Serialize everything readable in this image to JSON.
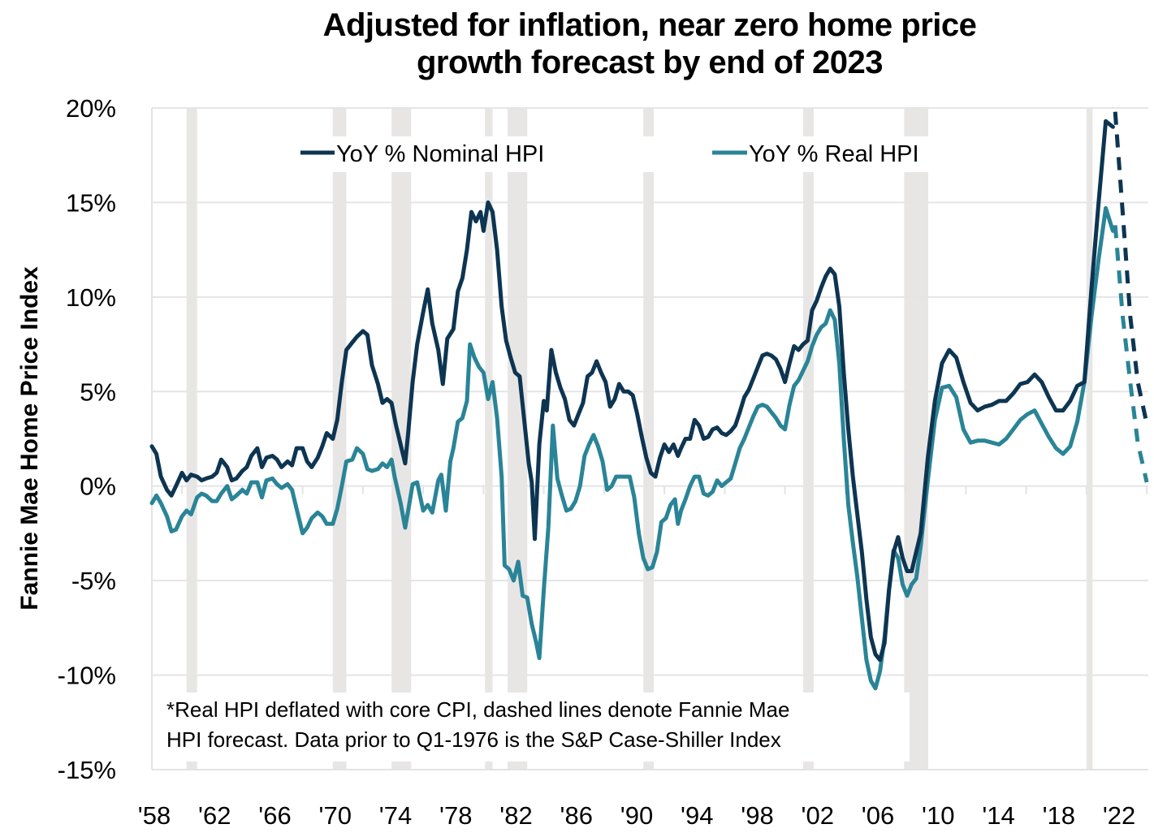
{
  "chart_data": {
    "type": "line",
    "title": "Adjusted for inflation, near zero home price growth forecast by end of 2023",
    "title_lines": [
      "Adjusted for inflation, near zero home price",
      "growth forecast by end of 2023"
    ],
    "xlabel": "",
    "ylabel": "Fannie Mae Home Price Index",
    "xlim": [
      1958,
      2024.1
    ],
    "ylim": [
      -15,
      20
    ],
    "y_ticks": [
      20,
      15,
      10,
      5,
      0,
      -5,
      -10,
      -15
    ],
    "y_tick_labels": [
      "20%",
      "15%",
      "10%",
      "5%",
      "0%",
      "-5%",
      "-10%",
      "-15%"
    ],
    "x_ticks": [
      1958,
      1962,
      1966,
      1970,
      1974,
      1978,
      1982,
      1986,
      1990,
      1994,
      1998,
      2002,
      2006,
      2010,
      2014,
      2018,
      2022
    ],
    "x_tick_labels": [
      "'58",
      "'62",
      "'66",
      "'70",
      "'74",
      "'78",
      "'82",
      "'86",
      "'90",
      "'94",
      "'98",
      "'02",
      "'06",
      "'10",
      "'14",
      "'18",
      "'22"
    ],
    "grid": "horizontal",
    "legend_position": "top-center",
    "recessions": [
      [
        1960.3,
        1961.0
      ],
      [
        1970.0,
        1970.9
      ],
      [
        1973.9,
        1975.2
      ],
      [
        1980.1,
        1980.6
      ],
      [
        1981.6,
        1982.9
      ],
      [
        1990.6,
        1991.3
      ],
      [
        2001.2,
        2001.9
      ],
      [
        2007.9,
        2009.5
      ],
      [
        2020.1,
        2020.4
      ]
    ],
    "annotation": [
      "*Real HPI deflated with core CPI, dashed lines denote Fannie Mae",
      "HPI forecast. Data prior to Q1-1976 is the S&P Case-Shiller Index"
    ],
    "series": [
      {
        "name": "YoY % Nominal HPI",
        "legend_label": "YoY % Nominal HPI",
        "color": "#0d3552",
        "style": "solid",
        "points": [
          [
            1958.0,
            2.1
          ],
          [
            1958.3,
            1.7
          ],
          [
            1958.6,
            0.5
          ],
          [
            1959.0,
            -0.2
          ],
          [
            1959.3,
            -0.5
          ],
          [
            1959.6,
            0.0
          ],
          [
            1960.0,
            0.7
          ],
          [
            1960.3,
            0.3
          ],
          [
            1960.6,
            0.6
          ],
          [
            1961.0,
            0.5
          ],
          [
            1961.3,
            0.3
          ],
          [
            1961.6,
            0.4
          ],
          [
            1962.0,
            0.5
          ],
          [
            1962.3,
            0.7
          ],
          [
            1962.6,
            1.4
          ],
          [
            1963.0,
            1.0
          ],
          [
            1963.3,
            0.3
          ],
          [
            1963.6,
            0.4
          ],
          [
            1964.0,
            0.8
          ],
          [
            1964.3,
            1.0
          ],
          [
            1964.6,
            1.6
          ],
          [
            1965.0,
            2.0
          ],
          [
            1965.3,
            1.0
          ],
          [
            1965.6,
            1.5
          ],
          [
            1966.0,
            1.6
          ],
          [
            1966.3,
            1.4
          ],
          [
            1966.6,
            1.0
          ],
          [
            1967.0,
            1.3
          ],
          [
            1967.3,
            1.1
          ],
          [
            1967.6,
            2.0
          ],
          [
            1968.0,
            2.0
          ],
          [
            1968.3,
            1.3
          ],
          [
            1968.6,
            1.0
          ],
          [
            1969.0,
            1.5
          ],
          [
            1969.3,
            2.1
          ],
          [
            1969.6,
            2.8
          ],
          [
            1970.0,
            2.5
          ],
          [
            1970.3,
            3.5
          ],
          [
            1970.6,
            5.5
          ],
          [
            1970.9,
            7.2
          ],
          [
            1971.3,
            7.6
          ],
          [
            1971.6,
            7.9
          ],
          [
            1972.0,
            8.2
          ],
          [
            1972.3,
            8.0
          ],
          [
            1972.6,
            6.4
          ],
          [
            1973.0,
            5.4
          ],
          [
            1973.3,
            4.4
          ],
          [
            1973.6,
            4.6
          ],
          [
            1973.9,
            4.4
          ],
          [
            1974.2,
            3.2
          ],
          [
            1974.5,
            2.2
          ],
          [
            1974.8,
            1.2
          ],
          [
            1975.0,
            2.8
          ],
          [
            1975.3,
            5.5
          ],
          [
            1975.6,
            7.5
          ],
          [
            1976.0,
            9.2
          ],
          [
            1976.3,
            10.4
          ],
          [
            1976.6,
            8.6
          ],
          [
            1977.0,
            7.2
          ],
          [
            1977.3,
            5.4
          ],
          [
            1977.6,
            7.8
          ],
          [
            1978.0,
            8.3
          ],
          [
            1978.3,
            10.3
          ],
          [
            1978.6,
            11.0
          ],
          [
            1978.9,
            12.5
          ],
          [
            1979.2,
            14.5
          ],
          [
            1979.5,
            14.0
          ],
          [
            1979.8,
            14.5
          ],
          [
            1980.0,
            13.5
          ],
          [
            1980.3,
            15.0
          ],
          [
            1980.6,
            14.5
          ],
          [
            1980.9,
            12.5
          ],
          [
            1981.2,
            9.5
          ],
          [
            1981.5,
            7.7
          ],
          [
            1981.8,
            6.8
          ],
          [
            1982.1,
            6.0
          ],
          [
            1982.4,
            5.8
          ],
          [
            1982.7,
            3.5
          ],
          [
            1983.0,
            1.2
          ],
          [
            1983.2,
            0.2
          ],
          [
            1983.4,
            -2.8
          ],
          [
            1983.7,
            2.2
          ],
          [
            1984.0,
            4.5
          ],
          [
            1984.2,
            4.0
          ],
          [
            1984.5,
            7.2
          ],
          [
            1984.8,
            6.0
          ],
          [
            1985.1,
            5.2
          ],
          [
            1985.4,
            4.6
          ],
          [
            1985.7,
            3.5
          ],
          [
            1986.0,
            3.2
          ],
          [
            1986.3,
            3.8
          ],
          [
            1986.6,
            4.4
          ],
          [
            1986.9,
            5.8
          ],
          [
            1987.2,
            6.0
          ],
          [
            1987.5,
            6.6
          ],
          [
            1987.8,
            6.0
          ],
          [
            1988.1,
            5.5
          ],
          [
            1988.4,
            4.2
          ],
          [
            1988.7,
            4.6
          ],
          [
            1989.0,
            5.4
          ],
          [
            1989.3,
            5.0
          ],
          [
            1989.6,
            5.0
          ],
          [
            1989.9,
            4.8
          ],
          [
            1990.2,
            3.8
          ],
          [
            1990.5,
            2.6
          ],
          [
            1990.8,
            1.5
          ],
          [
            1991.1,
            0.7
          ],
          [
            1991.4,
            0.5
          ],
          [
            1991.7,
            1.5
          ],
          [
            1992.0,
            2.2
          ],
          [
            1992.3,
            1.8
          ],
          [
            1992.6,
            2.2
          ],
          [
            1992.9,
            1.6
          ],
          [
            1993.1,
            2.0
          ],
          [
            1993.4,
            2.5
          ],
          [
            1993.7,
            2.5
          ],
          [
            1994.0,
            3.5
          ],
          [
            1994.3,
            3.2
          ],
          [
            1994.6,
            2.5
          ],
          [
            1994.9,
            2.6
          ],
          [
            1995.2,
            3.0
          ],
          [
            1995.5,
            3.1
          ],
          [
            1995.8,
            2.8
          ],
          [
            1996.1,
            2.7
          ],
          [
            1996.4,
            2.9
          ],
          [
            1996.7,
            3.2
          ],
          [
            1997.0,
            3.9
          ],
          [
            1997.3,
            4.7
          ],
          [
            1997.6,
            5.1
          ],
          [
            1997.9,
            5.7
          ],
          [
            1998.2,
            6.3
          ],
          [
            1998.5,
            6.9
          ],
          [
            1998.8,
            7.0
          ],
          [
            1999.1,
            6.9
          ],
          [
            1999.4,
            6.7
          ],
          [
            1999.7,
            6.2
          ],
          [
            2000.0,
            5.5
          ],
          [
            2000.3,
            6.5
          ],
          [
            2000.6,
            7.4
          ],
          [
            2000.9,
            7.2
          ],
          [
            2001.2,
            7.5
          ],
          [
            2001.5,
            7.7
          ],
          [
            2001.8,
            9.3
          ],
          [
            2002.1,
            9.8
          ],
          [
            2002.4,
            10.5
          ],
          [
            2002.7,
            11.1
          ],
          [
            2003.0,
            11.5
          ],
          [
            2003.3,
            11.2
          ],
          [
            2003.6,
            9.5
          ],
          [
            2003.9,
            6.0
          ],
          [
            2004.2,
            3.0
          ],
          [
            2004.5,
            0.5
          ],
          [
            2004.8,
            -1.5
          ],
          [
            2005.1,
            -3.5
          ],
          [
            2005.4,
            -6.0
          ],
          [
            2005.7,
            -8.0
          ],
          [
            2006.0,
            -8.9
          ],
          [
            2006.3,
            -9.2
          ],
          [
            2006.6,
            -8.3
          ],
          [
            2006.9,
            -5.5
          ],
          [
            2007.2,
            -3.5
          ],
          [
            2007.5,
            -2.7
          ],
          [
            2007.8,
            -3.8
          ],
          [
            2008.1,
            -4.5
          ],
          [
            2008.4,
            -4.5
          ],
          [
            2008.7,
            -3.5
          ],
          [
            2009.0,
            -2.5
          ],
          [
            2009.3,
            1.5
          ],
          [
            2009.6,
            4.5
          ],
          [
            2009.9,
            6.5
          ],
          [
            2010.2,
            7.2
          ],
          [
            2010.5,
            6.8
          ],
          [
            2010.8,
            5.5
          ],
          [
            2011.1,
            4.4
          ],
          [
            2011.4,
            4.0
          ],
          [
            2011.7,
            4.2
          ],
          [
            2012.0,
            4.3
          ],
          [
            2012.3,
            4.5
          ],
          [
            2012.6,
            4.5
          ],
          [
            2012.9,
            4.9
          ],
          [
            2013.2,
            5.4
          ],
          [
            2013.5,
            5.5
          ],
          [
            2013.8,
            5.9
          ],
          [
            2014.1,
            5.5
          ],
          [
            2014.4,
            4.7
          ],
          [
            2014.7,
            4.0
          ],
          [
            2015.0,
            4.0
          ],
          [
            2015.3,
            4.5
          ],
          [
            2015.6,
            5.3
          ],
          [
            2015.9,
            5.5
          ],
          [
            2016.2,
            10.5
          ],
          [
            2016.5,
            15.0
          ],
          [
            2016.8,
            19.3
          ],
          [
            2017.1,
            19.0
          ]
        ]
      },
      {
        "name": "YoY % Real HPI",
        "legend_label": "YoY % Real HPI",
        "color": "#2a8497",
        "style": "solid",
        "points": []
      }
    ]
  },
  "legend": {
    "nominal_label": "YoY % Nominal HPI",
    "real_label": "YoY % Real HPI"
  },
  "ylabel": "Fannie Mae Home Price Index"
}
